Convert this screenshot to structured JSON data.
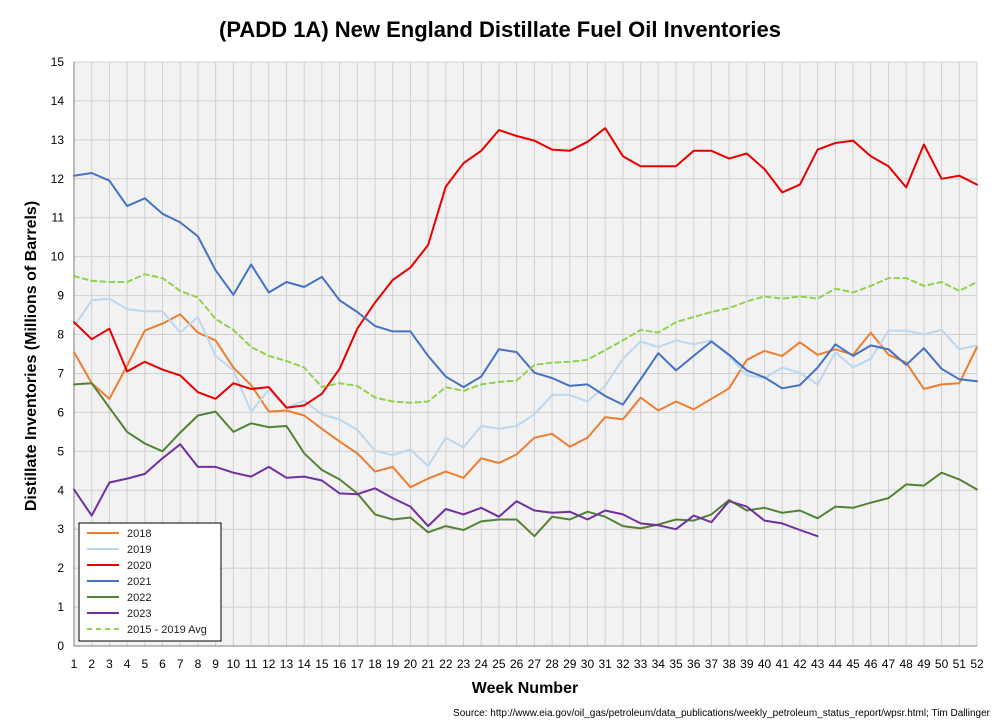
{
  "chart_data": {
    "type": "line",
    "title": "(PADD 1A) New England Distillate Fuel Oil Inventories",
    "xlabel": "Week Number",
    "ylabel": "Distillate Inventories (Millions of Barrels)",
    "source": "Source: http://www.eia.gov/oil_gas/petroleum/data_publications/weekly_petroleum_status_report/wpsr.html; Tim Dallinger",
    "xlim": [
      1,
      52
    ],
    "ylim": [
      0,
      15
    ],
    "y_ticks": [
      0,
      1,
      2,
      3,
      4,
      5,
      6,
      7,
      8,
      9,
      10,
      11,
      12,
      13,
      14,
      15
    ],
    "x_ticks": [
      1,
      2,
      3,
      4,
      5,
      6,
      7,
      8,
      9,
      10,
      11,
      12,
      13,
      14,
      15,
      16,
      17,
      18,
      19,
      20,
      21,
      22,
      23,
      24,
      25,
      26,
      27,
      28,
      29,
      30,
      31,
      32,
      33,
      34,
      35,
      36,
      37,
      38,
      39,
      40,
      41,
      42,
      43,
      44,
      45,
      46,
      47,
      48,
      49,
      50,
      51,
      52
    ],
    "grid": true,
    "legend_position": "bottom-left",
    "series": [
      {
        "name": "2018",
        "color": "#ED7D31",
        "dash": false,
        "values": [
          7.55,
          6.75,
          6.35,
          7.2,
          8.1,
          8.28,
          8.52,
          8.05,
          7.85,
          7.15,
          6.7,
          6.02,
          6.05,
          5.92,
          5.58,
          5.25,
          4.95,
          4.48,
          4.6,
          4.08,
          4.3,
          4.48,
          4.32,
          4.82,
          4.7,
          4.92,
          5.35,
          5.45,
          5.12,
          5.35,
          5.88,
          5.82,
          6.38,
          6.05,
          6.28,
          6.08,
          6.35,
          6.62,
          7.35,
          7.58,
          7.45,
          7.8,
          7.48,
          7.62,
          7.48,
          8.05,
          7.48,
          7.28,
          6.6,
          6.72,
          6.75,
          7.68
        ]
      },
      {
        "name": "2019",
        "color": "#BDD7EE",
        "dash": false,
        "values": [
          8.2,
          8.88,
          8.92,
          8.65,
          8.6,
          8.6,
          8.05,
          8.45,
          7.45,
          7.08,
          6.02,
          6.58,
          6.12,
          6.3,
          5.95,
          5.82,
          5.55,
          5.02,
          4.9,
          5.05,
          4.62,
          5.35,
          5.1,
          5.65,
          5.58,
          5.65,
          5.95,
          6.45,
          6.45,
          6.28,
          6.68,
          7.38,
          7.82,
          7.68,
          7.85,
          7.75,
          7.85,
          7.45,
          6.95,
          6.88,
          7.15,
          7.02,
          6.72,
          7.55,
          7.15,
          7.38,
          8.1,
          8.1,
          8.0,
          8.12,
          7.62,
          7.72
        ]
      },
      {
        "name": "2020",
        "color": "#E80000",
        "dash": false,
        "values": [
          8.32,
          7.88,
          8.15,
          7.05,
          7.3,
          7.1,
          6.95,
          6.52,
          6.35,
          6.75,
          6.6,
          6.65,
          6.12,
          6.18,
          6.48,
          7.12,
          8.15,
          8.82,
          9.4,
          9.72,
          10.3,
          11.8,
          12.4,
          12.72,
          13.25,
          13.1,
          12.98,
          12.75,
          12.72,
          12.95,
          13.3,
          12.58,
          12.32,
          12.32,
          12.32,
          12.72,
          12.72,
          12.52,
          12.65,
          12.25,
          11.65,
          11.85,
          12.75,
          12.92,
          12.98,
          12.58,
          12.32,
          11.78,
          12.88,
          12.0,
          12.08,
          11.85
        ]
      },
      {
        "name": "2021",
        "color": "#4472C4",
        "dash": false,
        "values": [
          12.08,
          12.15,
          11.95,
          11.3,
          11.5,
          11.1,
          10.88,
          10.52,
          9.65,
          9.02,
          9.8,
          9.08,
          9.35,
          9.22,
          9.48,
          8.88,
          8.58,
          8.22,
          8.08,
          8.08,
          7.45,
          6.92,
          6.65,
          6.92,
          7.62,
          7.55,
          7.02,
          6.88,
          6.68,
          6.72,
          6.42,
          6.2,
          6.85,
          7.52,
          7.08,
          7.45,
          7.82,
          7.48,
          7.08,
          6.9,
          6.62,
          6.7,
          7.15,
          7.75,
          7.45,
          7.72,
          7.62,
          7.22,
          7.65,
          7.12,
          6.85,
          6.8
        ]
      },
      {
        "name": "2022",
        "color": "#548235",
        "dash": false,
        "values": [
          6.72,
          6.75,
          6.12,
          5.5,
          5.2,
          5.0,
          5.48,
          5.92,
          6.02,
          5.5,
          5.72,
          5.62,
          5.65,
          4.95,
          4.52,
          4.28,
          3.92,
          3.38,
          3.25,
          3.3,
          2.92,
          3.08,
          2.98,
          3.2,
          3.25,
          3.25,
          2.82,
          3.32,
          3.25,
          3.45,
          3.32,
          3.08,
          3.02,
          3.12,
          3.25,
          3.22,
          3.38,
          3.75,
          3.48,
          3.55,
          3.42,
          3.48,
          3.28,
          3.58,
          3.55,
          3.68,
          3.8,
          4.15,
          4.12,
          4.45,
          4.28,
          4.02
        ]
      },
      {
        "name": "2023",
        "color": "#7030A0",
        "dash": false,
        "values": [
          4.02,
          3.35,
          4.2,
          4.3,
          4.42,
          4.82,
          5.18,
          4.6,
          4.6,
          4.45,
          4.35,
          4.6,
          4.32,
          4.35,
          4.25,
          3.92,
          3.9,
          4.05,
          3.8,
          3.58,
          3.08,
          3.52,
          3.38,
          3.55,
          3.32,
          3.72,
          3.48,
          3.42,
          3.45,
          3.25,
          3.48,
          3.38,
          3.15,
          3.1,
          3.0,
          3.35,
          3.18,
          3.72,
          3.58,
          3.22,
          3.15,
          2.98,
          2.82
        ]
      },
      {
        "name": "2015 - 2019 Avg",
        "color": "#92D050",
        "dash": true,
        "values": [
          9.5,
          9.38,
          9.35,
          9.35,
          9.55,
          9.45,
          9.12,
          8.95,
          8.4,
          8.12,
          7.68,
          7.45,
          7.32,
          7.15,
          6.65,
          6.75,
          6.68,
          6.38,
          6.28,
          6.25,
          6.28,
          6.65,
          6.55,
          6.72,
          6.78,
          6.82,
          7.22,
          7.28,
          7.3,
          7.35,
          7.6,
          7.85,
          8.12,
          8.05,
          8.32,
          8.45,
          8.58,
          8.68,
          8.85,
          8.98,
          8.92,
          8.98,
          8.92,
          9.18,
          9.08,
          9.25,
          9.45,
          9.45,
          9.25,
          9.35,
          9.12,
          9.35
        ]
      }
    ]
  }
}
